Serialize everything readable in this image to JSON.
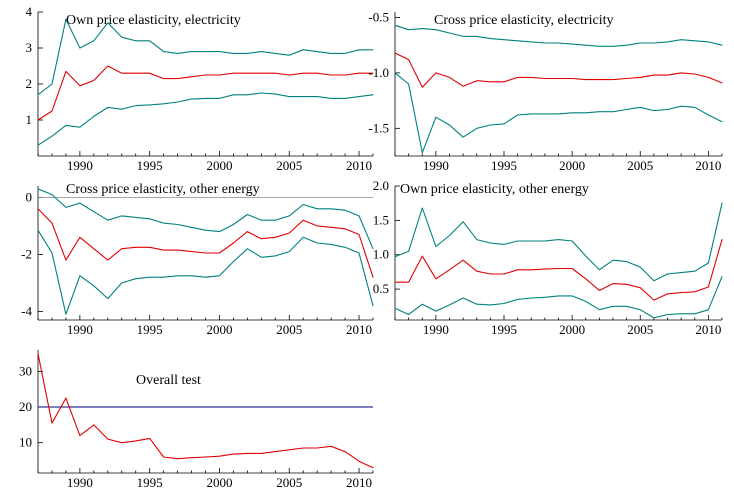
{
  "chart_data": [
    {
      "type": "line",
      "title": "Own price elasticity, electricity",
      "xlim": [
        1987,
        2011
      ],
      "ylim": [
        0,
        4
      ],
      "xticks": [
        1990,
        1995,
        2000,
        2005,
        2010
      ],
      "yticks": [
        1,
        2,
        3,
        4
      ],
      "x": [
        1987,
        1988,
        1989,
        1990,
        1991,
        1992,
        1993,
        1994,
        1995,
        1996,
        1997,
        1998,
        1999,
        2000,
        2001,
        2002,
        2003,
        2004,
        2005,
        2006,
        2007,
        2008,
        2009,
        2010,
        2011
      ],
      "series": [
        {
          "color": "#008080",
          "values": [
            1.7,
            2.0,
            3.8,
            3.0,
            3.2,
            3.7,
            3.3,
            3.2,
            3.2,
            2.9,
            2.85,
            2.9,
            2.9,
            2.9,
            2.85,
            2.85,
            2.9,
            2.85,
            2.8,
            2.95,
            2.9,
            2.85,
            2.85,
            2.95,
            2.95
          ]
        },
        {
          "color": "#e00000",
          "values": [
            1.0,
            1.25,
            2.35,
            1.95,
            2.1,
            2.5,
            2.3,
            2.3,
            2.3,
            2.15,
            2.15,
            2.2,
            2.25,
            2.25,
            2.3,
            2.3,
            2.3,
            2.3,
            2.25,
            2.3,
            2.3,
            2.25,
            2.25,
            2.3,
            2.3
          ]
        },
        {
          "color": "#008080",
          "values": [
            0.3,
            0.55,
            0.85,
            0.8,
            1.1,
            1.35,
            1.3,
            1.4,
            1.42,
            1.45,
            1.5,
            1.58,
            1.6,
            1.6,
            1.7,
            1.7,
            1.75,
            1.72,
            1.65,
            1.65,
            1.65,
            1.6,
            1.6,
            1.65,
            1.7
          ]
        }
      ]
    },
    {
      "type": "line",
      "title": "Cross price elasticity, electricity",
      "xlim": [
        1987,
        2011
      ],
      "ylim": [
        -1.75,
        -0.45
      ],
      "xticks": [
        1990,
        1995,
        2000,
        2005,
        2010
      ],
      "yticks": [
        -1.5,
        -1.0,
        -0.5
      ],
      "ytick_labels": [
        "-1.5",
        "-1.0",
        "-0.5"
      ],
      "x": [
        1987,
        1988,
        1989,
        1990,
        1991,
        1992,
        1993,
        1994,
        1995,
        1996,
        1997,
        1998,
        1999,
        2000,
        2001,
        2002,
        2003,
        2004,
        2005,
        2006,
        2007,
        2008,
        2009,
        2010,
        2011
      ],
      "series": [
        {
          "color": "#008080",
          "values": [
            -0.57,
            -0.61,
            -0.6,
            -0.61,
            -0.64,
            -0.67,
            -0.67,
            -0.69,
            -0.7,
            -0.71,
            -0.72,
            -0.73,
            -0.73,
            -0.74,
            -0.75,
            -0.76,
            -0.76,
            -0.75,
            -0.73,
            -0.73,
            -0.72,
            -0.7,
            -0.71,
            -0.72,
            -0.75
          ]
        },
        {
          "color": "#e00000",
          "values": [
            -0.82,
            -0.88,
            -1.13,
            -1.0,
            -1.04,
            -1.12,
            -1.07,
            -1.08,
            -1.08,
            -1.04,
            -1.04,
            -1.05,
            -1.05,
            -1.05,
            -1.06,
            -1.06,
            -1.06,
            -1.05,
            -1.04,
            -1.02,
            -1.02,
            -1.0,
            -1.01,
            -1.04,
            -1.09
          ]
        },
        {
          "color": "#008080",
          "values": [
            -1.0,
            -1.1,
            -1.72,
            -1.4,
            -1.47,
            -1.58,
            -1.5,
            -1.47,
            -1.46,
            -1.38,
            -1.37,
            -1.37,
            -1.37,
            -1.36,
            -1.36,
            -1.35,
            -1.35,
            -1.33,
            -1.31,
            -1.34,
            -1.33,
            -1.3,
            -1.31,
            -1.38,
            -1.44
          ]
        }
      ]
    },
    {
      "type": "line",
      "title": "Cross price elasticity, other energy",
      "xlim": [
        1987,
        2011
      ],
      "ylim": [
        -4.3,
        0.4
      ],
      "xticks": [
        1990,
        1995,
        2000,
        2005,
        2010
      ],
      "yticks": [
        -4,
        -2,
        0
      ],
      "zero_line": 0,
      "x": [
        1987,
        1988,
        1989,
        1990,
        1991,
        1992,
        1993,
        1994,
        1995,
        1996,
        1997,
        1998,
        1999,
        2000,
        2001,
        2002,
        2003,
        2004,
        2005,
        2006,
        2007,
        2008,
        2009,
        2010,
        2011
      ],
      "series": [
        {
          "color": "#008080",
          "values": [
            0.3,
            0.1,
            -0.35,
            -0.2,
            -0.5,
            -0.8,
            -0.65,
            -0.7,
            -0.75,
            -0.9,
            -0.95,
            -1.05,
            -1.15,
            -1.2,
            -0.95,
            -0.6,
            -0.8,
            -0.8,
            -0.65,
            -0.25,
            -0.4,
            -0.4,
            -0.45,
            -0.65,
            -1.8
          ]
        },
        {
          "color": "#e00000",
          "values": [
            -0.4,
            -0.9,
            -2.2,
            -1.4,
            -1.8,
            -2.2,
            -1.8,
            -1.75,
            -1.75,
            -1.85,
            -1.85,
            -1.9,
            -1.95,
            -1.95,
            -1.6,
            -1.2,
            -1.45,
            -1.4,
            -1.25,
            -0.8,
            -1.0,
            -1.05,
            -1.1,
            -1.3,
            -2.8
          ]
        },
        {
          "color": "#008080",
          "values": [
            -1.15,
            -1.95,
            -4.1,
            -2.75,
            -3.1,
            -3.55,
            -3.0,
            -2.85,
            -2.8,
            -2.8,
            -2.75,
            -2.75,
            -2.8,
            -2.75,
            -2.25,
            -1.8,
            -2.1,
            -2.05,
            -1.9,
            -1.4,
            -1.6,
            -1.65,
            -1.75,
            -1.95,
            -3.8
          ]
        }
      ]
    },
    {
      "type": "line",
      "title": "Own price elasticity, other energy",
      "xlim": [
        1987,
        2011
      ],
      "ylim": [
        0.05,
        2.0
      ],
      "xticks": [
        1990,
        1995,
        2000,
        2005,
        2010
      ],
      "yticks": [
        0.5,
        1.0,
        1.5,
        2.0
      ],
      "ytick_labels": [
        "0.5",
        "1.0",
        "1.5",
        "2.0"
      ],
      "x": [
        1987,
        1988,
        1989,
        1990,
        1991,
        1992,
        1993,
        1994,
        1995,
        1996,
        1997,
        1998,
        1999,
        2000,
        2001,
        2002,
        2003,
        2004,
        2005,
        2006,
        2007,
        2008,
        2009,
        2010,
        2011
      ],
      "series": [
        {
          "color": "#008080",
          "values": [
            0.97,
            1.05,
            1.68,
            1.12,
            1.28,
            1.48,
            1.22,
            1.17,
            1.15,
            1.2,
            1.2,
            1.2,
            1.22,
            1.2,
            0.98,
            0.78,
            0.92,
            0.9,
            0.82,
            0.62,
            0.72,
            0.74,
            0.76,
            0.88,
            1.75
          ]
        },
        {
          "color": "#e00000",
          "values": [
            0.6,
            0.6,
            0.98,
            0.65,
            0.78,
            0.92,
            0.76,
            0.72,
            0.72,
            0.78,
            0.78,
            0.79,
            0.8,
            0.8,
            0.65,
            0.48,
            0.58,
            0.57,
            0.52,
            0.34,
            0.43,
            0.45,
            0.46,
            0.53,
            1.22
          ]
        },
        {
          "color": "#008080",
          "values": [
            0.22,
            0.13,
            0.28,
            0.18,
            0.27,
            0.37,
            0.28,
            0.27,
            0.29,
            0.35,
            0.37,
            0.38,
            0.4,
            0.4,
            0.32,
            0.2,
            0.25,
            0.25,
            0.2,
            0.08,
            0.13,
            0.14,
            0.14,
            0.2,
            0.68
          ]
        }
      ]
    },
    {
      "type": "line",
      "title": "Overall test",
      "xlim": [
        1987,
        2011
      ],
      "ylim": [
        1.5,
        36
      ],
      "xticks": [
        1990,
        1995,
        2000,
        2005,
        2010
      ],
      "yticks": [
        10,
        20,
        30
      ],
      "reference_line": {
        "value": 20,
        "color": "#000080"
      },
      "x": [
        1987,
        1988,
        1989,
        1990,
        1991,
        1992,
        1993,
        1994,
        1995,
        1996,
        1997,
        1998,
        1999,
        2000,
        2001,
        2002,
        2003,
        2004,
        2005,
        2006,
        2007,
        2008,
        2009,
        2010,
        2011
      ],
      "series": [
        {
          "color": "#e00000",
          "values": [
            35,
            15.5,
            22.5,
            12,
            15,
            11,
            10,
            10.5,
            11.2,
            6,
            5.5,
            5.8,
            6,
            6.2,
            6.8,
            7,
            7,
            7.5,
            8,
            8.5,
            8.5,
            9,
            7.5,
            4.8,
            3
          ]
        }
      ]
    }
  ]
}
